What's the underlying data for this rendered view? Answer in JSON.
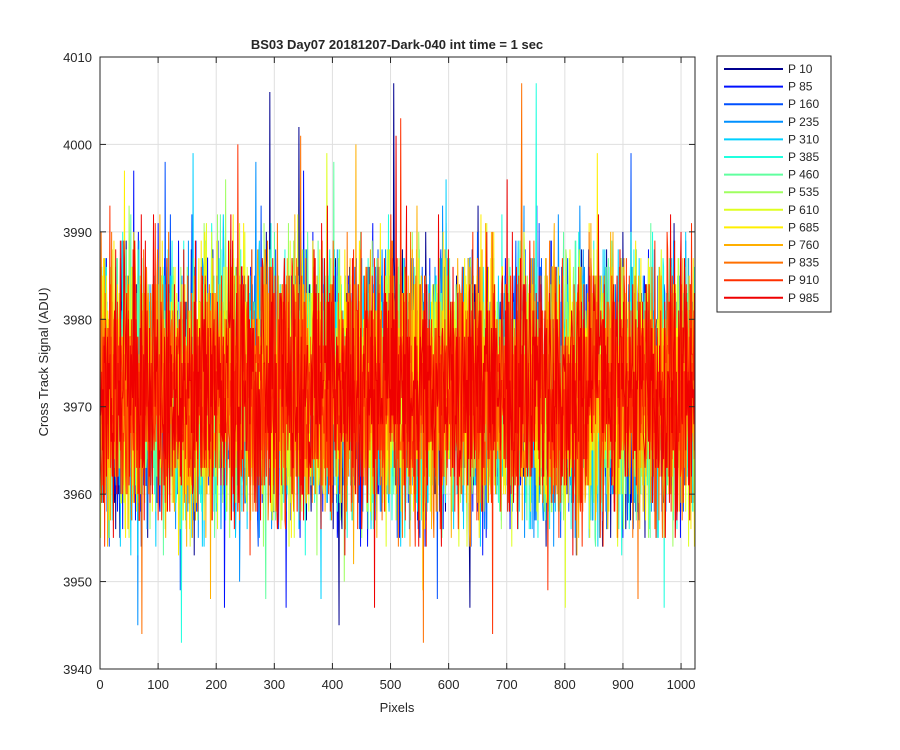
{
  "chart_data": {
    "type": "line",
    "title": "BS03 Day07 20181207-Dark-040 int time = 1 sec",
    "xlabel": "Pixels",
    "ylabel": "Cross Track Signal (ADU)",
    "xlim": [
      0,
      1024
    ],
    "ylim": [
      3940,
      4010
    ],
    "xticks": [
      0,
      100,
      200,
      300,
      400,
      500,
      600,
      700,
      800,
      900,
      1000
    ],
    "yticks": [
      3940,
      3950,
      3960,
      3970,
      3980,
      3990,
      4000,
      4010
    ],
    "grid": true,
    "legend_position": "outside-top-right",
    "noise_model": {
      "points_per_series": 1024,
      "mean": 3972,
      "typical_range": [
        3953,
        3993
      ]
    },
    "series": [
      {
        "name": "P 10",
        "color": "#00008F",
        "peaks": [
          [
            292,
            4006
          ],
          [
            342,
            4002
          ],
          [
            505,
            4007
          ]
        ],
        "dips": [
          [
            411,
            3945
          ],
          [
            636,
            3947
          ]
        ]
      },
      {
        "name": "P 85",
        "color": "#0010FF",
        "peaks": [
          [
            58,
            3997
          ],
          [
            350,
            3997
          ]
        ],
        "dips": [
          [
            214,
            3947
          ],
          [
            320,
            3947
          ]
        ]
      },
      {
        "name": "P 160",
        "color": "#0050FF",
        "peaks": [
          [
            112,
            3998
          ],
          [
            913,
            3999
          ]
        ],
        "dips": [
          [
            138,
            3949
          ],
          [
            580,
            3948
          ]
        ]
      },
      {
        "name": "P 235",
        "color": "#0090FF",
        "peaks": [
          [
            268,
            3998
          ]
        ],
        "dips": [
          [
            65,
            3945
          ],
          [
            240,
            3950
          ]
        ]
      },
      {
        "name": "P 310",
        "color": "#00D0FF",
        "peaks": [
          [
            160,
            3999
          ],
          [
            595,
            3996
          ]
        ],
        "dips": [
          [
            380,
            3948
          ]
        ]
      },
      {
        "name": "P 385",
        "color": "#20FFDF",
        "peaks": [
          [
            750,
            4007
          ]
        ],
        "dips": [
          [
            140,
            3943
          ],
          [
            970,
            3947
          ]
        ]
      },
      {
        "name": "P 460",
        "color": "#60FF9F",
        "peaks": [
          [
            402,
            3998
          ]
        ],
        "dips": [
          [
            285,
            3948
          ]
        ]
      },
      {
        "name": "P 535",
        "color": "#9FFF60",
        "peaks": [
          [
            216,
            3996
          ]
        ],
        "dips": [
          [
            420,
            3950
          ]
        ]
      },
      {
        "name": "P 610",
        "color": "#DFFF20",
        "peaks": [
          [
            390,
            3999
          ]
        ],
        "dips": [
          [
            800,
            3947
          ]
        ]
      },
      {
        "name": "P 685",
        "color": "#FFEF00",
        "peaks": [
          [
            42,
            3997
          ],
          [
            855,
            3999
          ]
        ],
        "dips": [
          [
            555,
            3949
          ]
        ]
      },
      {
        "name": "P 760",
        "color": "#FFAF00",
        "peaks": [
          [
            440,
            4000
          ]
        ],
        "dips": [
          [
            190,
            3948
          ]
        ]
      },
      {
        "name": "P 835",
        "color": "#FF7000",
        "peaks": [
          [
            725,
            4007
          ],
          [
            345,
            4001
          ]
        ],
        "dips": [
          [
            72,
            3944
          ],
          [
            556,
            3943
          ],
          [
            925,
            3948
          ]
        ]
      },
      {
        "name": "P 910",
        "color": "#FF3000",
        "peaks": [
          [
            237,
            4000
          ],
          [
            517,
            4003
          ]
        ],
        "dips": [
          [
            675,
            3944
          ],
          [
            770,
            3949
          ]
        ]
      },
      {
        "name": "P 985",
        "color": "#EF0000",
        "peaks": [
          [
            509,
            4001
          ],
          [
            700,
            3996
          ]
        ],
        "dips": [
          [
            472,
            3947
          ]
        ]
      }
    ]
  }
}
